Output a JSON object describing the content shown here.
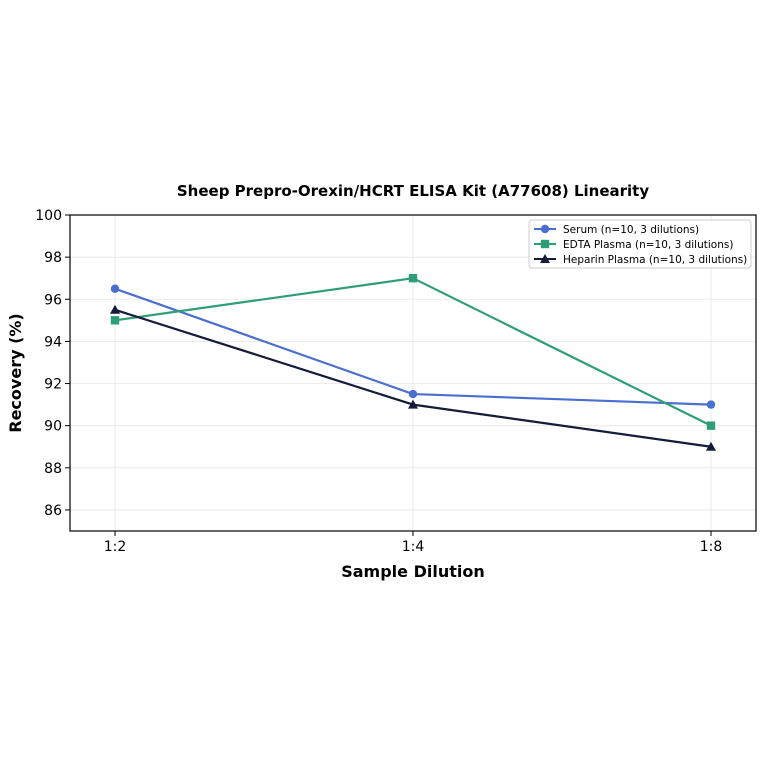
{
  "chart_data": {
    "type": "line",
    "title": "Sheep Prepro-Orexin/HCRT ELISA Kit (A77608) Linearity",
    "xlabel": "Sample Dilution",
    "ylabel": "Recovery (%)",
    "categories": [
      "1:2",
      "1:4",
      "1:8"
    ],
    "ylim": [
      85,
      100
    ],
    "yticks": [
      86,
      88,
      90,
      92,
      94,
      96,
      98,
      100
    ],
    "grid": true,
    "legend_position": "top-right",
    "series": [
      {
        "name": "Serum (n=10, 3 dilutions)",
        "values": [
          96.5,
          91.5,
          91.0
        ],
        "color": "#4a6fd0",
        "marker": "circle"
      },
      {
        "name": "EDTA Plasma (n=10, 3 dilutions)",
        "values": [
          95.0,
          97.0,
          90.0
        ],
        "color": "#2e9e77",
        "marker": "square"
      },
      {
        "name": "Heparin Plasma (n=10, 3 dilutions)",
        "values": [
          95.5,
          91.0,
          89.0
        ],
        "color": "#141c3a",
        "marker": "triangle"
      }
    ]
  }
}
